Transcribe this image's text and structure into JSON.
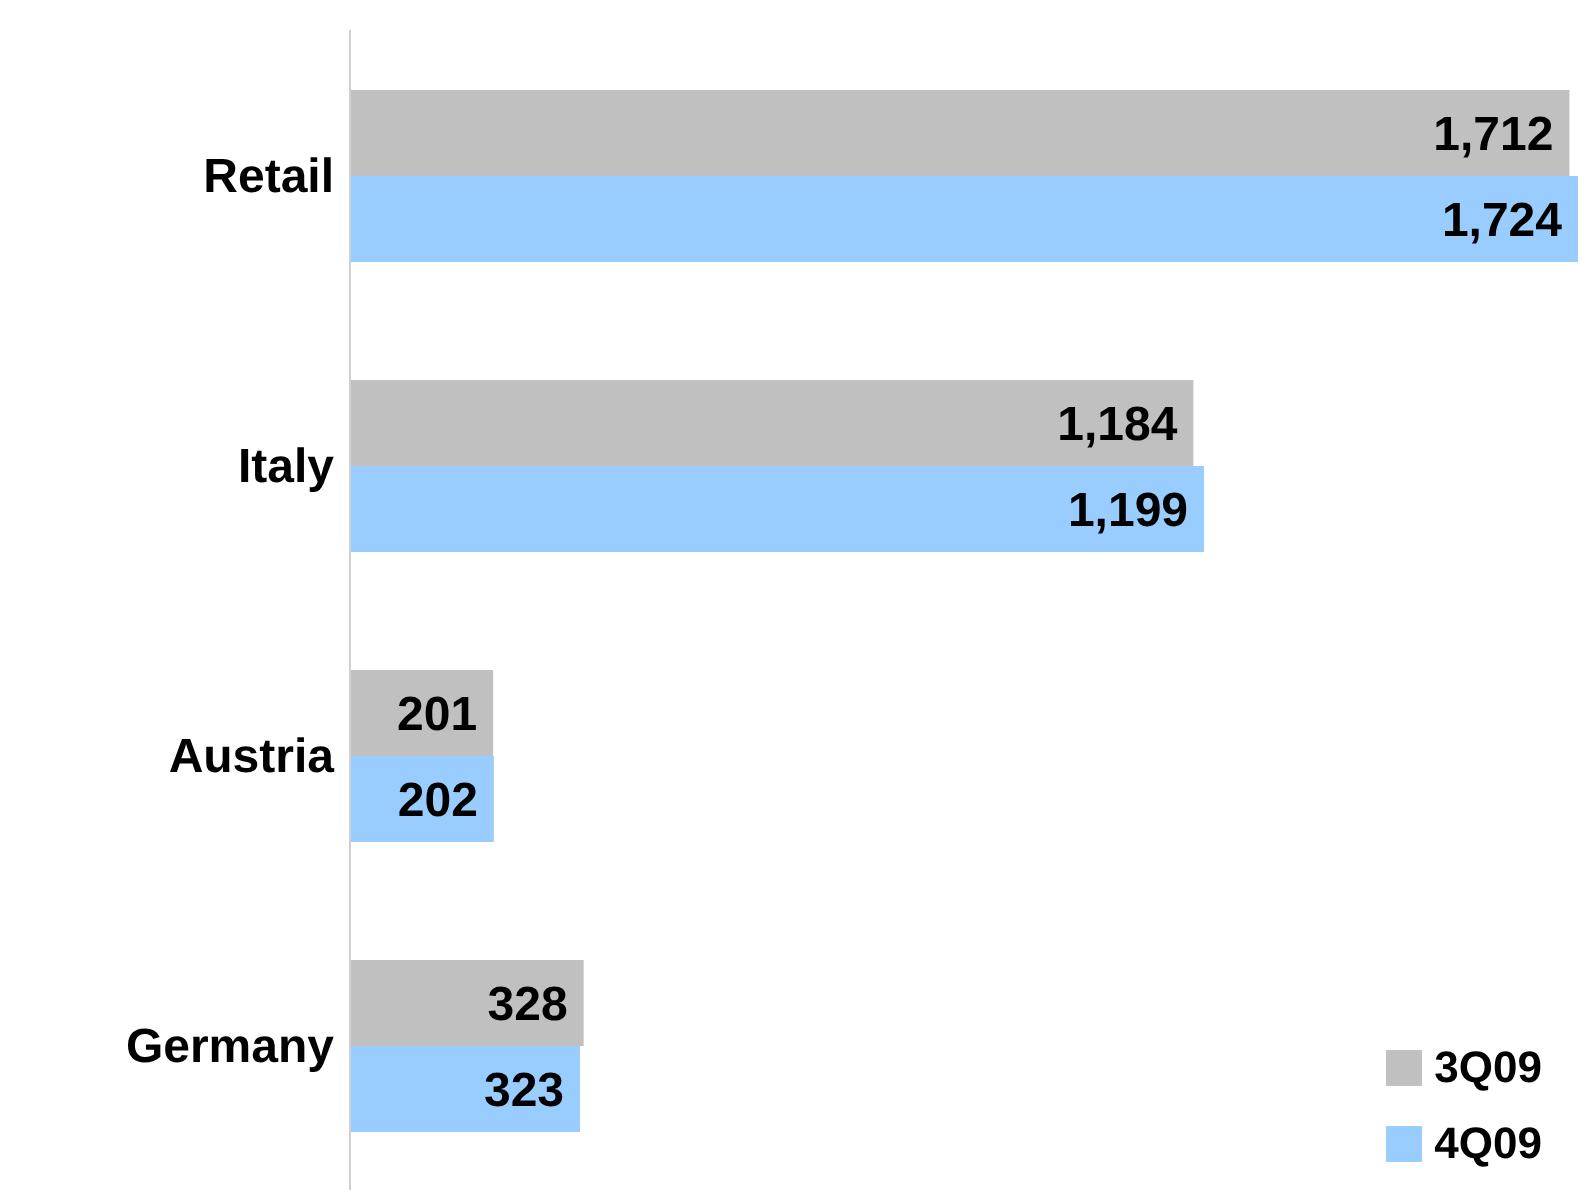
{
  "chart_data": {
    "type": "bar",
    "orientation": "horizontal",
    "categories": [
      "Retail",
      "Italy",
      "Austria",
      "Germany"
    ],
    "series": [
      {
        "name": "3Q09",
        "color": "#c0c0c0",
        "values": [
          1712,
          1184,
          201,
          328
        ],
        "value_labels": [
          "1,712",
          "1,184",
          "201",
          "328"
        ]
      },
      {
        "name": "4Q09",
        "color": "#99ccff",
        "values": [
          1724,
          1199,
          202,
          323
        ],
        "value_labels": [
          "1,724",
          "1,199",
          "202",
          "323"
        ]
      }
    ],
    "legend": "bottom right"
  }
}
